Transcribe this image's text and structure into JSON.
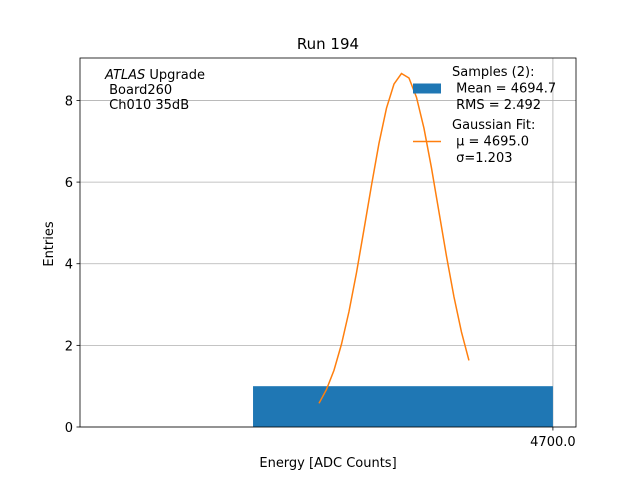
{
  "chart_data": {
    "type": "histogram",
    "title": "Run 194",
    "xlabel": "Energy [ADC Counts]",
    "ylabel": "Entries",
    "annotation_italic": "ATLAS",
    "annotation": [
      " Upgrade",
      " Board260",
      " Ch010 35dB"
    ],
    "bins": [
      4690,
      4700
    ],
    "series": [
      {
        "name": [
          "Samples (2):",
          " Mean = 4694.7",
          " RMS = 2.492"
        ],
        "color": "#1f77b4",
        "values": [
          1
        ]
      },
      {
        "name": [
          "Gaussian Fit:",
          " μ = 4695.0",
          " σ=1.203"
        ],
        "color": "#ff7f0e",
        "type": "line",
        "x": [
          4692.2,
          4692.45,
          4692.7,
          4692.95,
          4693.2,
          4693.45,
          4693.7,
          4693.95,
          4694.2,
          4694.45,
          4694.7,
          4694.95,
          4695.2,
          4695.45,
          4695.7,
          4695.95,
          4696.2,
          4696.45,
          4696.7,
          4696.95,
          4697.2
        ],
        "values": [
          0.58,
          0.92,
          1.39,
          2.03,
          2.83,
          3.78,
          4.84,
          5.92,
          6.95,
          7.81,
          8.4,
          8.66,
          8.55,
          8.08,
          7.32,
          6.35,
          5.27,
          4.19,
          3.19,
          2.33,
          1.63
        ]
      }
    ],
    "xlim": [
      4684.23,
      4700.77
    ],
    "ylim": [
      0,
      9.04
    ],
    "xticks": [
      {
        "value": 4700,
        "label": "4700.0"
      }
    ],
    "yticks": [
      0,
      2,
      4,
      6,
      8
    ],
    "grid": true
  }
}
